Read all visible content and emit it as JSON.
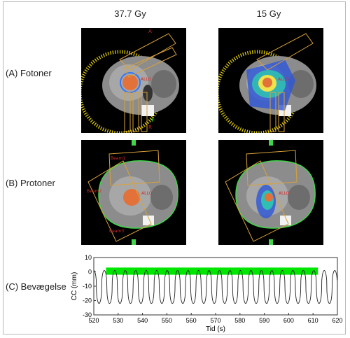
{
  "columns": {
    "left_title": "37.7 Gy",
    "right_title": "15 Gy"
  },
  "rows": {
    "a_label": "(A) Fotoner",
    "b_label": "(B) Protoner",
    "c_label": "(C) Bevægelse"
  },
  "panel_text": {
    "heart_label": "ALLO",
    "liver_label": "ORIGINAL",
    "a_marker": "A",
    "r_marker": "R",
    "beam_labels": [
      "Beam1",
      "Beam2",
      "Beam3"
    ]
  },
  "colors": {
    "ct_background": "#000000",
    "gantry_ring": "#e6d200",
    "beam_outline": "#d8a23a",
    "body_contour": "#3fd64a",
    "gating_band": "#00e600",
    "trace": "#222222"
  },
  "chart_data": {
    "type": "line",
    "title": "",
    "xlabel": "Tid (s)",
    "ylabel": "CC (mm)",
    "xlim": [
      520,
      620
    ],
    "ylim": [
      -30,
      10
    ],
    "xticks": [
      520,
      530,
      540,
      550,
      560,
      570,
      580,
      590,
      600,
      610,
      620
    ],
    "yticks": [
      10,
      0,
      -10,
      -20,
      -30
    ],
    "gating_window": {
      "x_start": 525,
      "x_end": 612,
      "y_low": -2,
      "y_high": 3
    },
    "series": [
      {
        "name": "",
        "period_s": 4.3,
        "peak_mm": 1,
        "trough_mm": -22
      }
    ],
    "grid": false,
    "legend": "none"
  }
}
